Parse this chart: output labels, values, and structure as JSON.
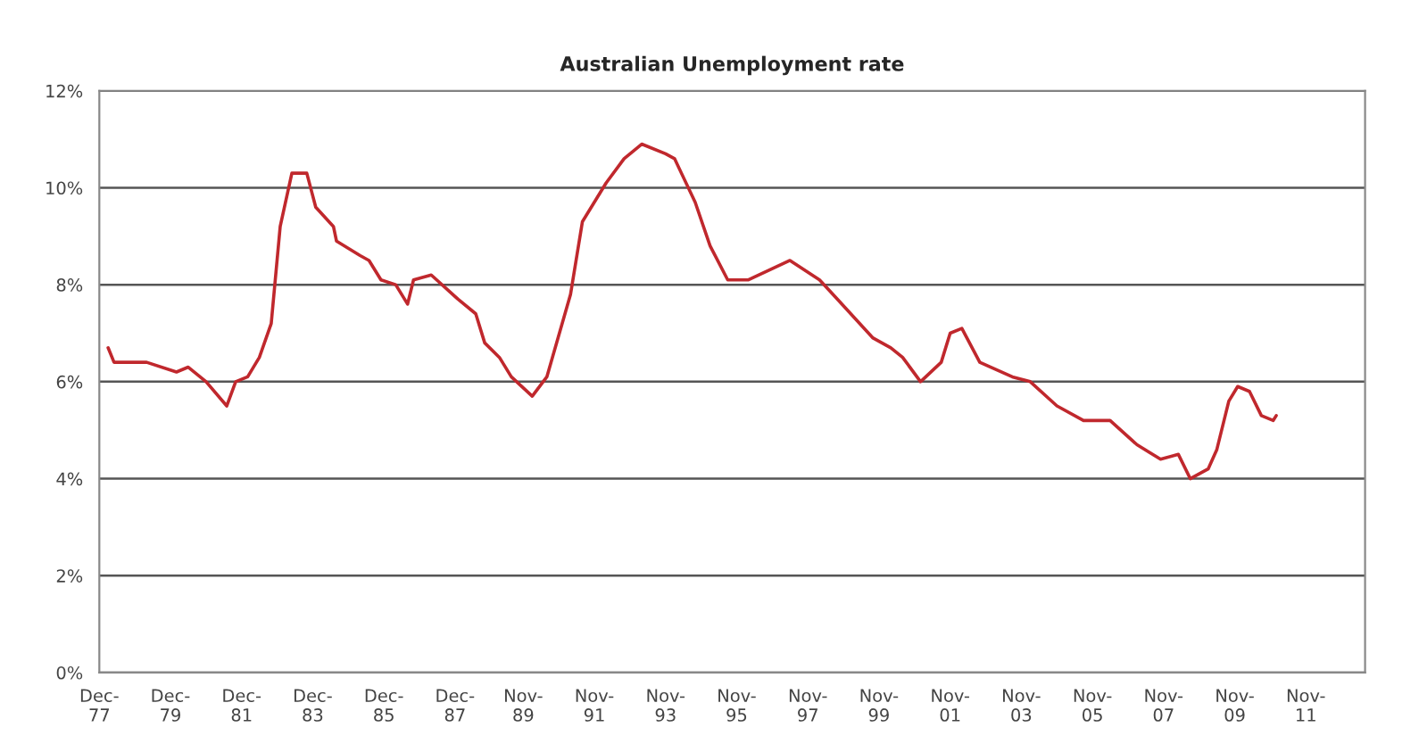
{
  "chart_data": {
    "type": "line",
    "title": "Australian Unemployment rate",
    "series": [
      {
        "color": "#c0282d",
        "x": [
          "1978-03",
          "1978-05",
          "1979-04",
          "1980-02",
          "1980-06",
          "1980-12",
          "1981-07",
          "1981-10",
          "1982-02",
          "1982-06",
          "1982-10",
          "1983-01",
          "1983-05",
          "1983-10",
          "1984-01",
          "1984-07",
          "1984-08",
          "1985-04",
          "1985-07",
          "1985-11",
          "1986-04",
          "1986-08",
          "1986-10",
          "1987-04",
          "1988-01",
          "1988-07",
          "1988-10",
          "1989-03",
          "1989-07",
          "1990-02",
          "1990-07",
          "1991-03",
          "1991-07",
          "1992-03",
          "1992-09",
          "1993-03",
          "1993-11",
          "1994-02",
          "1994-09",
          "1995-02",
          "1995-08",
          "1996-03",
          "1997-05",
          "1998-03",
          "1998-09",
          "1999-09",
          "2000-03",
          "2000-07",
          "2001-01",
          "2001-08",
          "2001-11",
          "2002-03",
          "2002-09",
          "2003-08",
          "2004-02",
          "2004-11",
          "2005-08",
          "2006-05",
          "2007-02",
          "2007-10",
          "2008-04",
          "2008-08",
          "2009-02",
          "2009-05",
          "2009-09",
          "2009-12",
          "2010-04",
          "2010-08",
          "2010-12",
          "2011-01"
        ],
        "values": [
          6.7,
          6.4,
          6.4,
          6.2,
          6.3,
          6.0,
          5.5,
          6.0,
          6.1,
          6.5,
          7.2,
          9.2,
          10.3,
          10.3,
          9.6,
          9.2,
          8.9,
          8.6,
          8.5,
          8.1,
          8.0,
          7.6,
          8.1,
          8.2,
          7.7,
          7.4,
          6.8,
          6.5,
          6.1,
          5.7,
          6.1,
          7.8,
          9.3,
          10.1,
          10.6,
          10.9,
          10.7,
          10.6,
          9.7,
          8.8,
          8.1,
          8.1,
          8.5,
          8.1,
          7.7,
          6.9,
          6.7,
          6.5,
          6.0,
          6.4,
          7.0,
          7.1,
          6.4,
          6.1,
          6.0,
          5.5,
          5.2,
          5.2,
          4.7,
          4.4,
          4.5,
          4.0,
          4.2,
          4.6,
          5.6,
          5.9,
          5.8,
          5.3,
          5.2,
          5.3
        ]
      }
    ],
    "xlim": [
      "1977-12",
      "2013-07"
    ],
    "xticks": [
      {
        "value": "1977-12",
        "label": "Dec-\n77"
      },
      {
        "value": "1979-12",
        "label": "Dec-\n79"
      },
      {
        "value": "1981-12",
        "label": "Dec-\n81"
      },
      {
        "value": "1983-12",
        "label": "Dec-\n83"
      },
      {
        "value": "1985-12",
        "label": "Dec-\n85"
      },
      {
        "value": "1987-12",
        "label": "Dec-\n87"
      },
      {
        "value": "1989-11",
        "label": "Nov-\n89"
      },
      {
        "value": "1991-11",
        "label": "Nov-\n91"
      },
      {
        "value": "1993-11",
        "label": "Nov-\n93"
      },
      {
        "value": "1995-11",
        "label": "Nov-\n95"
      },
      {
        "value": "1997-11",
        "label": "Nov-\n97"
      },
      {
        "value": "1999-11",
        "label": "Nov-\n99"
      },
      {
        "value": "2001-11",
        "label": "Nov-\n01"
      },
      {
        "value": "2003-11",
        "label": "Nov-\n03"
      },
      {
        "value": "2005-11",
        "label": "Nov-\n05"
      },
      {
        "value": "2007-11",
        "label": "Nov-\n07"
      },
      {
        "value": "2009-11",
        "label": "Nov-\n09"
      },
      {
        "value": "2011-11",
        "label": "Nov-\n11"
      }
    ],
    "ylim": [
      0,
      12
    ],
    "yticks": [
      {
        "value": 0,
        "label": "0%"
      },
      {
        "value": 2,
        "label": "2%"
      },
      {
        "value": 4,
        "label": "4%"
      },
      {
        "value": 6,
        "label": "6%"
      },
      {
        "value": 8,
        "label": "8%"
      },
      {
        "value": 10,
        "label": "10%"
      },
      {
        "value": 12,
        "label": "12%"
      }
    ],
    "grid": "y",
    "marker": "none",
    "line_style": "solid"
  }
}
